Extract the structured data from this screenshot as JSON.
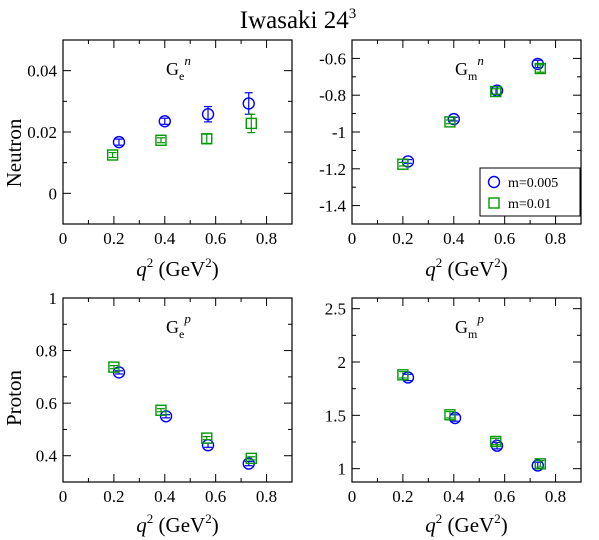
{
  "title": "Iwasaki 24",
  "title_sup": "3",
  "row_labels": {
    "top": "Neutron",
    "bottom": "Proton"
  },
  "xaxis": {
    "q_label": "q",
    "q_sup": "2",
    "unit_open": " (GeV",
    "unit_sup": "2",
    "unit_close": ")"
  },
  "legend": [
    {
      "label": "m=0.005",
      "marker": "circle",
      "color": "#0000ff"
    },
    {
      "label": "m=0.01",
      "marker": "square",
      "color": "#009900"
    }
  ],
  "chart_data": [
    {
      "type": "scatter",
      "panel": "top-left",
      "label_base": "G",
      "label_sub": "e",
      "label_sup": "n",
      "xlim": [
        0,
        0.9
      ],
      "ylim": [
        -0.01,
        0.05
      ],
      "xticks": [
        0,
        0.2,
        0.4,
        0.6,
        0.8
      ],
      "xticklabels": [
        "0",
        "0.2",
        "0.4",
        "0.6",
        "0.8"
      ],
      "yticks": [
        0,
        0.02,
        0.04
      ],
      "yticklabels": [
        "0",
        "0.02",
        "0.04"
      ],
      "yminor": [
        -0.01,
        0.01,
        0.03,
        0.05
      ],
      "series": [
        {
          "name": "m=0.005",
          "marker": "circle",
          "color": "#0000ff",
          "x": [
            0.22,
            0.4,
            0.57,
            0.73
          ],
          "y": [
            0.0167,
            0.0235,
            0.0258,
            0.0293
          ],
          "err": [
            0.001,
            0.001,
            0.0025,
            0.0035
          ]
        },
        {
          "name": "m=0.01",
          "marker": "square",
          "color": "#009900",
          "x": [
            0.195,
            0.385,
            0.565,
            0.74
          ],
          "y": [
            0.0125,
            0.0173,
            0.0178,
            0.0228
          ],
          "err": [
            0.0008,
            0.0008,
            0.0015,
            0.003
          ]
        }
      ]
    },
    {
      "type": "scatter",
      "panel": "top-right",
      "label_base": "G",
      "label_sub": "m",
      "label_sup": "n",
      "xlim": [
        0,
        0.9
      ],
      "ylim": [
        -1.5,
        -0.5
      ],
      "xticks": [
        0,
        0.2,
        0.4,
        0.6,
        0.8
      ],
      "xticklabels": [
        "0",
        "0.2",
        "0.4",
        "0.6",
        "0.8"
      ],
      "yticks": [
        -1.4,
        -1.2,
        -1.0,
        -0.8,
        -0.6
      ],
      "yticklabels": [
        "-1.4",
        "-1.2",
        "-1",
        "-0.8",
        "-0.6"
      ],
      "yminor": [
        -1.5,
        -1.3,
        -1.1,
        -0.9,
        -0.7,
        -0.5
      ],
      "series": [
        {
          "name": "m=0.005",
          "marker": "circle",
          "color": "#0000ff",
          "x": [
            0.22,
            0.4,
            0.57,
            0.73
          ],
          "y": [
            -1.16,
            -0.93,
            -0.775,
            -0.63
          ],
          "err": [
            0.01,
            0.01,
            0.02,
            0.02
          ]
        },
        {
          "name": "m=0.01",
          "marker": "square",
          "color": "#009900",
          "x": [
            0.2,
            0.385,
            0.565,
            0.74
          ],
          "y": [
            -1.175,
            -0.945,
            -0.78,
            -0.655
          ],
          "err": [
            0.01,
            0.01,
            0.015,
            0.02
          ]
        }
      ]
    },
    {
      "type": "scatter",
      "panel": "bottom-left",
      "label_base": "G",
      "label_sub": "e",
      "label_sup": "p",
      "xlim": [
        0,
        0.9
      ],
      "ylim": [
        0.3,
        1.0
      ],
      "xticks": [
        0,
        0.2,
        0.4,
        0.6,
        0.8
      ],
      "xticklabels": [
        "0",
        "0.2",
        "0.4",
        "0.6",
        "0.8"
      ],
      "yticks": [
        0.4,
        0.6,
        0.8,
        1.0
      ],
      "yticklabels": [
        "0.4",
        "0.6",
        "0.8",
        "1"
      ],
      "yminor": [
        0.3,
        0.5,
        0.7,
        0.9
      ],
      "series": [
        {
          "name": "m=0.005",
          "marker": "circle",
          "color": "#0000ff",
          "x": [
            0.22,
            0.405,
            0.57,
            0.73
          ],
          "y": [
            0.717,
            0.55,
            0.44,
            0.37
          ],
          "err": [
            0.006,
            0.006,
            0.008,
            0.008
          ]
        },
        {
          "name": "m=0.01",
          "marker": "square",
          "color": "#009900",
          "x": [
            0.2,
            0.385,
            0.565,
            0.74
          ],
          "y": [
            0.737,
            0.573,
            0.467,
            0.39
          ],
          "err": [
            0.006,
            0.006,
            0.006,
            0.006
          ]
        }
      ]
    },
    {
      "type": "scatter",
      "panel": "bottom-right",
      "label_base": "G",
      "label_sub": "m",
      "label_sup": "p",
      "xlim": [
        0,
        0.9
      ],
      "ylim": [
        0.875,
        2.6
      ],
      "xticks": [
        0,
        0.2,
        0.4,
        0.6,
        0.8
      ],
      "xticklabels": [
        "0",
        "0.2",
        "0.4",
        "0.6",
        "0.8"
      ],
      "yticks": [
        1.0,
        1.5,
        2.0,
        2.5
      ],
      "yticklabels": [
        "1",
        "1.5",
        "2",
        "2.5"
      ],
      "yminor": [
        1.25,
        1.75,
        2.25
      ],
      "series": [
        {
          "name": "m=0.005",
          "marker": "circle",
          "color": "#0000ff",
          "x": [
            0.22,
            0.405,
            0.57,
            0.73
          ],
          "y": [
            1.855,
            1.475,
            1.215,
            1.03
          ],
          "err": [
            0.03,
            0.03,
            0.03,
            0.03
          ]
        },
        {
          "name": "m=0.01",
          "marker": "square",
          "color": "#009900",
          "x": [
            0.2,
            0.385,
            0.565,
            0.74
          ],
          "y": [
            1.88,
            1.505,
            1.255,
            1.045
          ],
          "err": [
            0.03,
            0.03,
            0.03,
            0.03
          ]
        }
      ]
    }
  ]
}
